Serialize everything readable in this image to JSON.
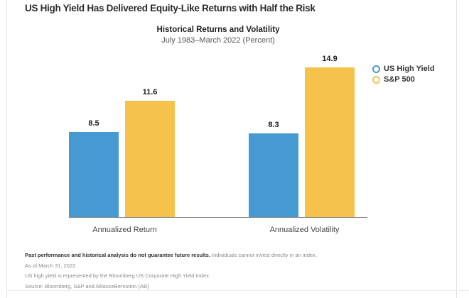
{
  "page": {
    "headline": "US High Yield Has Delivered Equity-Like Returns with Half the Risk"
  },
  "chart_data": {
    "type": "bar",
    "title": "Historical Returns and Volatility",
    "subtitle": "July 1983–March 2022 (Percent)",
    "categories": [
      "Annualized Return",
      "Annualized Volatility"
    ],
    "series": [
      {
        "name": "US High Yield",
        "color": "#4799d2",
        "values": [
          8.5,
          8.3
        ]
      },
      {
        "name": "S&P 500",
        "color": "#f5c24b",
        "values": [
          11.6,
          14.9
        ]
      }
    ],
    "ylim": [
      0,
      14.9
    ],
    "value_labels": true,
    "grid": false,
    "legend_position": "right",
    "axis_line_color": "#8c8c8c"
  },
  "footnotes": {
    "disclaimer_bold": "Past performance and historical analysis do not guarantee future results.",
    "disclaimer_regular": "Individuals cannot invest directly in an index.",
    "as_of": "As of March 31, 2022",
    "index_note": "US high yield is represented by the Bloomberg US Corporate High Yield Index.",
    "source": "Source: Bloomberg, S&P and AllianceBernstein (AB)"
  }
}
